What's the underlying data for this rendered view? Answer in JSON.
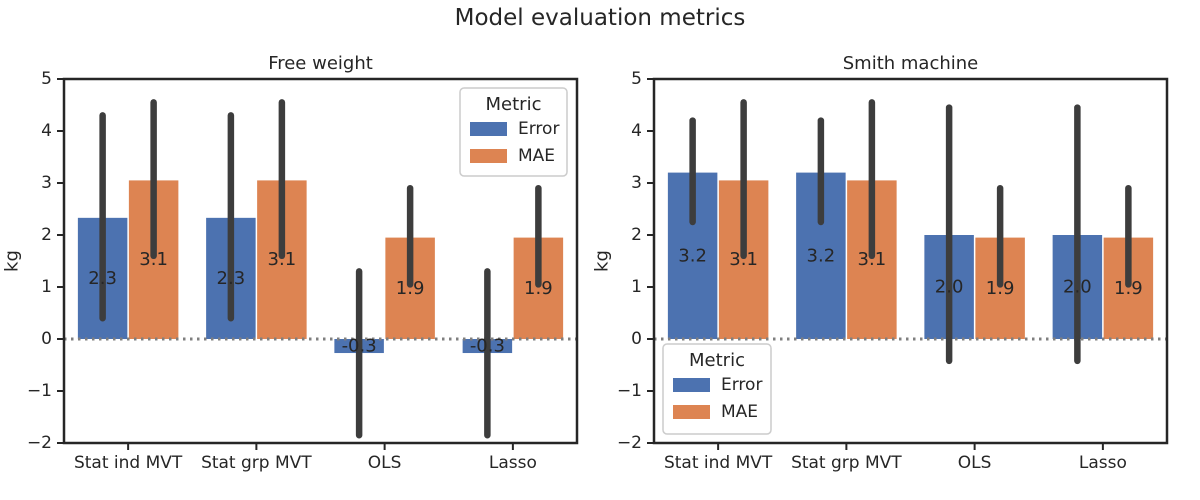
{
  "figure": {
    "title": "Model evaluation metrics"
  },
  "colors": {
    "error": "#4c72b0",
    "mae": "#dd8452",
    "errorbar": "#3d3d3d",
    "zeroline": "#7f7f7f",
    "axes": "#262626"
  },
  "chart_data": [
    {
      "type": "bar",
      "title": "Free weight",
      "xlabel": "",
      "ylabel": "kg",
      "ylim": [
        -2,
        5
      ],
      "yticks": [
        -2,
        -1,
        0,
        1,
        2,
        3,
        4,
        5
      ],
      "ytick_labels": [
        "−2",
        "−1",
        "0",
        "1",
        "2",
        "3",
        "4",
        "5"
      ],
      "categories": [
        "Stat ind MVT",
        "Stat grp MVT",
        "OLS",
        "Lasso"
      ],
      "grid": false,
      "reference_line": {
        "y": 0,
        "style": "dotted"
      },
      "legend": {
        "title": "Metric",
        "placement": "upper right",
        "entries": [
          "Error",
          "MAE"
        ]
      },
      "series": [
        {
          "name": "Error",
          "color": "#4c72b0",
          "values": [
            2.33,
            2.33,
            -0.27,
            -0.27
          ],
          "ci": [
            [
              0.4,
              4.3
            ],
            [
              0.4,
              4.3
            ],
            [
              -1.85,
              1.3
            ],
            [
              -1.85,
              1.3
            ]
          ],
          "labels": [
            "2.3",
            "2.3",
            "-0.3",
            "-0.3"
          ]
        },
        {
          "name": "MAE",
          "color": "#dd8452",
          "values": [
            3.05,
            3.05,
            1.95,
            1.95
          ],
          "ci": [
            [
              1.6,
              4.55
            ],
            [
              1.6,
              4.55
            ],
            [
              1.05,
              2.9
            ],
            [
              1.05,
              2.9
            ]
          ],
          "labels": [
            "3.1",
            "3.1",
            "1.9",
            "1.9"
          ]
        }
      ]
    },
    {
      "type": "bar",
      "title": "Smith machine",
      "xlabel": "",
      "ylabel": "kg",
      "ylim": [
        -2,
        5
      ],
      "yticks": [
        -2,
        -1,
        0,
        1,
        2,
        3,
        4,
        5
      ],
      "ytick_labels": [
        "−2",
        "−1",
        "0",
        "1",
        "2",
        "3",
        "4",
        "5"
      ],
      "categories": [
        "Stat ind MVT",
        "Stat grp MVT",
        "OLS",
        "Lasso"
      ],
      "grid": false,
      "reference_line": {
        "y": 0,
        "style": "dotted"
      },
      "legend": {
        "title": "Metric",
        "placement": "lower left",
        "entries": [
          "Error",
          "MAE"
        ]
      },
      "series": [
        {
          "name": "Error",
          "color": "#4c72b0",
          "values": [
            3.2,
            3.2,
            2.0,
            2.0
          ],
          "ci": [
            [
              2.25,
              4.2
            ],
            [
              2.25,
              4.2
            ],
            [
              -0.42,
              4.45
            ],
            [
              -0.42,
              4.45
            ]
          ],
          "labels": [
            "3.2",
            "3.2",
            "2.0",
            "2.0"
          ]
        },
        {
          "name": "MAE",
          "color": "#dd8452",
          "values": [
            3.05,
            3.05,
            1.95,
            1.95
          ],
          "ci": [
            [
              1.6,
              4.55
            ],
            [
              1.6,
              4.55
            ],
            [
              1.05,
              2.9
            ],
            [
              1.05,
              2.9
            ]
          ],
          "labels": [
            "3.1",
            "3.1",
            "1.9",
            "1.9"
          ]
        }
      ]
    }
  ]
}
